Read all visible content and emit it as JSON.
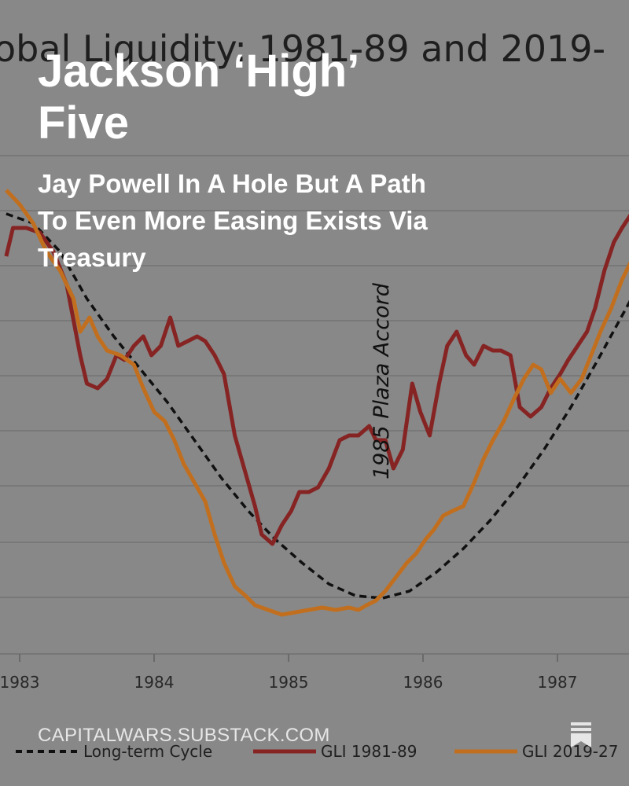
{
  "post": {
    "title_line1": "Jackson ‘High’",
    "title_line2": "Five",
    "subtitle": "Jay Powell In A Hole But A Path To Even More Easing Exists Via Treasury",
    "publication_url": "CAPITALWARS.SUBSTACK.COM"
  },
  "icons": {
    "bookmark": "bookmark-icon"
  },
  "colors": {
    "background": "#8d8d8d",
    "long_term_cycle": "#111111",
    "gli_1981_89": "#8b2525",
    "gli_2019_27": "#c8731f"
  },
  "chart_data": {
    "type": "line",
    "title": "obal Liquidity: 1981-89 and 2019-",
    "xlabel": "",
    "ylabel": "",
    "x_ticks": [
      "1983",
      "1984",
      "1985",
      "1986",
      "1987"
    ],
    "xlim": [
      1982.9,
      1987.55
    ],
    "ylim": [
      0,
      100
    ],
    "grid": "horizontal",
    "legend_position": "bottom",
    "annotation": {
      "text": "1985 Plaza Accord",
      "x": 1985.8
    },
    "series": [
      {
        "name": "Long-term Cycle",
        "style": "dashed",
        "x": [
          1982.9,
          1983.1,
          1983.3,
          1983.5,
          1983.7,
          1983.9,
          1984.1,
          1984.3,
          1984.5,
          1984.7,
          1984.9,
          1985.1,
          1985.3,
          1985.5,
          1985.7,
          1985.9,
          1986.1,
          1986.3,
          1986.5,
          1986.7,
          1986.9,
          1987.1,
          1987.3,
          1987.55
        ],
        "values": [
          88,
          86,
          80,
          70,
          62,
          55,
          48,
          40,
          32,
          25,
          19,
          14,
          9.5,
          7,
          6.5,
          8,
          12,
          17,
          23,
          30,
          38,
          47,
          57,
          70
        ]
      },
      {
        "name": "GLI 1981-89",
        "style": "solid",
        "x": [
          1982.9,
          1982.95,
          1983.05,
          1983.15,
          1983.25,
          1983.35,
          1983.45,
          1983.5,
          1983.58,
          1983.65,
          1983.72,
          1983.78,
          1983.85,
          1983.92,
          1983.98,
          1984.05,
          1984.12,
          1984.18,
          1984.25,
          1984.32,
          1984.38,
          1984.45,
          1984.52,
          1984.6,
          1984.68,
          1984.75,
          1984.8,
          1984.88,
          1984.95,
          1985.02,
          1985.08,
          1985.15,
          1985.22,
          1985.3,
          1985.38,
          1985.45,
          1985.52,
          1985.6,
          1985.65,
          1985.72,
          1985.78,
          1985.85,
          1985.92,
          1985.98,
          1986.05,
          1986.12,
          1986.18,
          1986.25,
          1986.32,
          1986.38,
          1986.45,
          1986.52,
          1986.58,
          1986.65,
          1986.72,
          1986.8,
          1986.88,
          1986.95,
          1987.02,
          1987.08,
          1987.15,
          1987.22,
          1987.28,
          1987.35,
          1987.42,
          1987.48,
          1987.55
        ],
        "values": [
          79,
          85,
          85,
          84,
          80,
          73,
          58,
          52,
          51,
          53,
          58,
          57,
          60,
          62,
          58,
          60,
          66,
          60,
          61,
          62,
          61,
          58,
          54,
          41,
          33,
          26,
          20,
          18,
          22,
          25,
          29,
          29,
          30,
          34,
          40,
          41,
          41,
          43,
          40,
          40,
          34,
          38,
          52,
          46,
          41,
          52,
          60,
          63,
          58,
          56,
          60,
          59,
          59,
          58,
          47,
          45,
          47,
          51,
          54,
          57,
          60,
          63,
          68,
          76,
          82,
          85,
          88
        ]
      },
      {
        "name": "GLI 2019-27",
        "style": "solid",
        "x": [
          1982.9,
          1983.0,
          1983.1,
          1983.2,
          1983.3,
          1983.4,
          1983.45,
          1983.52,
          1983.58,
          1983.65,
          1983.75,
          1983.85,
          1983.92,
          1984.0,
          1984.08,
          1984.15,
          1984.22,
          1984.3,
          1984.38,
          1984.45,
          1984.52,
          1984.6,
          1984.68,
          1984.75,
          1984.85,
          1984.95,
          1985.05,
          1985.15,
          1985.25,
          1985.35,
          1985.45,
          1985.52,
          1985.58,
          1985.65,
          1985.72,
          1985.8,
          1985.88,
          1985.95,
          1986.02,
          1986.08,
          1986.15,
          1986.22,
          1986.3,
          1986.38,
          1986.45,
          1986.52,
          1986.6,
          1986.68,
          1986.75,
          1986.82,
          1986.88,
          1986.95,
          1987.02,
          1987.1,
          1987.18,
          1987.25,
          1987.32,
          1987.4,
          1987.48,
          1987.55
        ],
        "values": [
          93,
          90,
          86,
          80,
          76,
          70,
          63,
          66,
          62,
          59,
          58,
          56,
          51,
          46,
          44,
          40,
          35,
          31,
          27,
          20,
          14,
          9,
          7,
          5,
          4,
          3,
          3.5,
          4,
          4.5,
          4,
          4.5,
          4,
          5,
          6,
          8,
          11,
          14,
          16,
          19,
          21,
          24,
          25,
          26,
          31,
          36,
          40,
          44,
          49,
          53,
          56,
          55,
          50,
          53,
          50,
          53,
          58,
          63,
          68,
          74,
          78
        ]
      }
    ]
  }
}
